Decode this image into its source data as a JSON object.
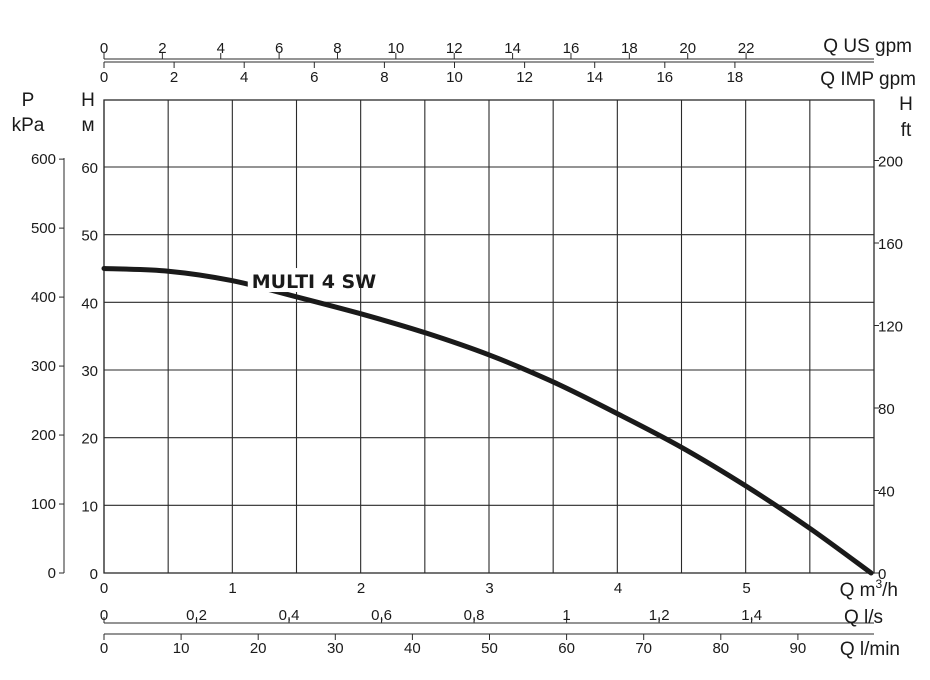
{
  "chart_data": {
    "type": "line",
    "title": "",
    "grid": true,
    "x": [
      0,
      0.5,
      1,
      1.5,
      2,
      2.5,
      3,
      3.5,
      4,
      4.5,
      5,
      5.5,
      5.97
    ],
    "series": [
      {
        "name": "MULTI 4 SW",
        "values": [
          45,
          44.6,
          43.2,
          40.8,
          38.3,
          35.5,
          32.2,
          28.2,
          23.5,
          18.5,
          12.8,
          6.5,
          0
        ]
      }
    ],
    "xlabel": "Q m³/h",
    "xlim": [
      0,
      6
    ],
    "ylim": [
      0,
      70
    ],
    "axes": {
      "left_pressure": {
        "label_top": "P",
        "label_unit": "kPa",
        "ticks": [
          "0",
          "100",
          "200",
          "300",
          "400",
          "500",
          "600"
        ],
        "values": [
          0,
          100,
          200,
          300,
          400,
          500,
          600
        ]
      },
      "left_head": {
        "label_top": "H",
        "label_unit": "м",
        "ticks": [
          "0",
          "10",
          "20",
          "30",
          "40",
          "50",
          "60"
        ],
        "values": [
          0,
          10,
          20,
          30,
          40,
          50,
          60
        ]
      },
      "right_head": {
        "label_top": "H",
        "label_unit": "ft",
        "ticks": [
          "0",
          "40",
          "80",
          "120",
          "160",
          "200"
        ],
        "values": [
          0,
          40,
          80,
          120,
          160,
          200
        ]
      },
      "top_us_gpm": {
        "label": "Q US gpm",
        "ticks": [
          "0",
          "2",
          "4",
          "6",
          "8",
          "10",
          "12",
          "14",
          "16",
          "18",
          "20",
          "22"
        ],
        "values": [
          0,
          2,
          4,
          6,
          8,
          10,
          12,
          14,
          16,
          18,
          20,
          22
        ]
      },
      "top_imp_gpm": {
        "label": "Q IMP gpm",
        "ticks": [
          "0",
          "2",
          "4",
          "6",
          "8",
          "10",
          "12",
          "14",
          "16",
          "18"
        ],
        "values": [
          0,
          2,
          4,
          6,
          8,
          10,
          12,
          14,
          16,
          18
        ]
      },
      "bottom_m3h": {
        "label_prefix": "Q m",
        "label_sup": "3",
        "label_suffix": "/h",
        "ticks": [
          "0",
          "1",
          "2",
          "3",
          "4",
          "5"
        ],
        "values": [
          0,
          1,
          2,
          3,
          4,
          5
        ]
      },
      "bottom_ls": {
        "label": "Q l/s",
        "ticks": [
          "0",
          "0,2",
          "0,4",
          "0,6",
          "0,8",
          "1",
          "1,2",
          "1,4"
        ],
        "values": [
          0,
          0.2,
          0.4,
          0.6,
          0.8,
          1,
          1.2,
          1.4
        ]
      },
      "bottom_lmin": {
        "label": "Q l/min",
        "ticks": [
          "0",
          "10",
          "20",
          "30",
          "40",
          "50",
          "60",
          "70",
          "80",
          "90"
        ],
        "values": [
          0,
          10,
          20,
          30,
          40,
          50,
          60,
          70,
          80,
          90
        ]
      }
    }
  }
}
